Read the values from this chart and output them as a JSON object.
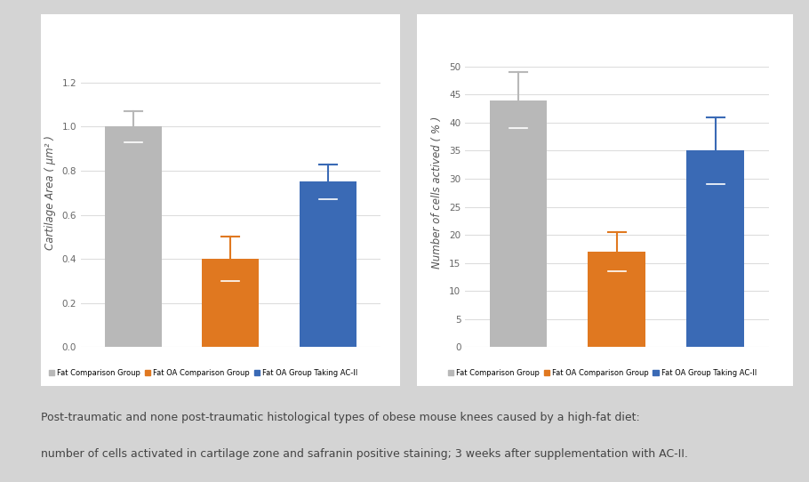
{
  "chart1": {
    "ylabel": "Cartilage Area ( μm² )",
    "ylim": [
      0,
      1.4
    ],
    "yticks": [
      0,
      0.2,
      0.4,
      0.6,
      0.8,
      1.0,
      1.2
    ],
    "values": [
      1.0,
      0.4,
      0.75
    ],
    "errors": [
      0.07,
      0.1,
      0.08
    ],
    "colors": [
      "#b8b8b8",
      "#e07820",
      "#3a6ab5"
    ],
    "bar_width": 0.38
  },
  "chart2": {
    "ylabel": "Number of cells actived ( % )",
    "ylim": [
      0,
      55
    ],
    "yticks": [
      0,
      5,
      10,
      15,
      20,
      25,
      30,
      35,
      40,
      45,
      50
    ],
    "values": [
      44,
      17,
      35
    ],
    "errors": [
      5,
      3.5,
      6
    ],
    "colors": [
      "#b8b8b8",
      "#e07820",
      "#3a6ab5"
    ],
    "bar_width": 0.38
  },
  "legend_labels": [
    "Fat Comparison Group",
    "Fat OA Comparison Group",
    "Fat OA Group Taking AC-II"
  ],
  "legend_colors": [
    "#b8b8b8",
    "#e07820",
    "#3a6ab5"
  ],
  "caption_line1": "Post-traumatic and none post-traumatic histological types of obese mouse knees caused by a high-fat diet:",
  "caption_line2": "number of cells activated in cartilage zone and safranin positive staining; 3 weeks after supplementation with AC-II.",
  "bg_color": "#d4d4d4",
  "panel_bg": "#ffffff",
  "caption_color": "#444444",
  "caption_fontsize": 9.0,
  "grid_color": "#dddddd",
  "tick_color": "#666666",
  "tick_fontsize": 7.5,
  "ylabel_fontsize": 8.5,
  "legend_fontsize": 6.0
}
